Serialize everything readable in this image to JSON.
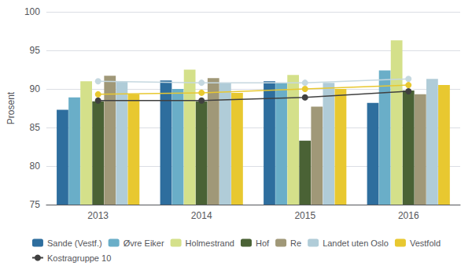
{
  "chart_data": {
    "type": "bar",
    "categories": [
      "2013",
      "2014",
      "2015",
      "2016"
    ],
    "series": [
      {
        "name": "Sande (Vestf.)",
        "type": "bar",
        "color": "#2e6e9e",
        "values": [
          87.3,
          91.1,
          91.0,
          88.2
        ]
      },
      {
        "name": "Øvre Eiker",
        "type": "bar",
        "color": "#6aaec8",
        "values": [
          88.9,
          90.0,
          90.8,
          92.4
        ]
      },
      {
        "name": "Holmestrand",
        "type": "bar",
        "color": "#d4e08a",
        "values": [
          91.0,
          92.5,
          91.8,
          96.3
        ]
      },
      {
        "name": "Hof",
        "type": "bar",
        "color": "#4a6235",
        "values": [
          88.4,
          88.4,
          83.3,
          89.8
        ]
      },
      {
        "name": "Re",
        "type": "bar",
        "color": "#a09878",
        "values": [
          91.7,
          91.4,
          87.7,
          89.3
        ]
      },
      {
        "name": "Landet uten Oslo",
        "type": "bar",
        "color": "#b0ccd8",
        "values": [
          91.0,
          90.8,
          90.8,
          91.3
        ]
      },
      {
        "name": "Vestfold",
        "type": "bar",
        "color": "#e8c830",
        "values": [
          89.3,
          89.5,
          90.0,
          90.5
        ]
      },
      {
        "name": "Landet uten Oslo",
        "type": "line",
        "color": "#c5d8e0",
        "marker": "circle",
        "values": [
          91.0,
          90.8,
          90.8,
          91.3
        ]
      },
      {
        "name": "Vestfold",
        "type": "line",
        "color": "#e8c830",
        "marker": "circle",
        "values": [
          89.3,
          89.5,
          90.0,
          90.5
        ]
      },
      {
        "name": "Kostragruppe 10",
        "type": "line",
        "color": "#404040",
        "marker": "circle",
        "values": [
          88.5,
          88.5,
          88.9,
          89.7
        ]
      }
    ],
    "ylabel": "Prosent",
    "ylim": [
      75,
      100
    ],
    "yticks": [
      75,
      80,
      85,
      90,
      95,
      100
    ],
    "grid": true,
    "legend": "bottom"
  }
}
